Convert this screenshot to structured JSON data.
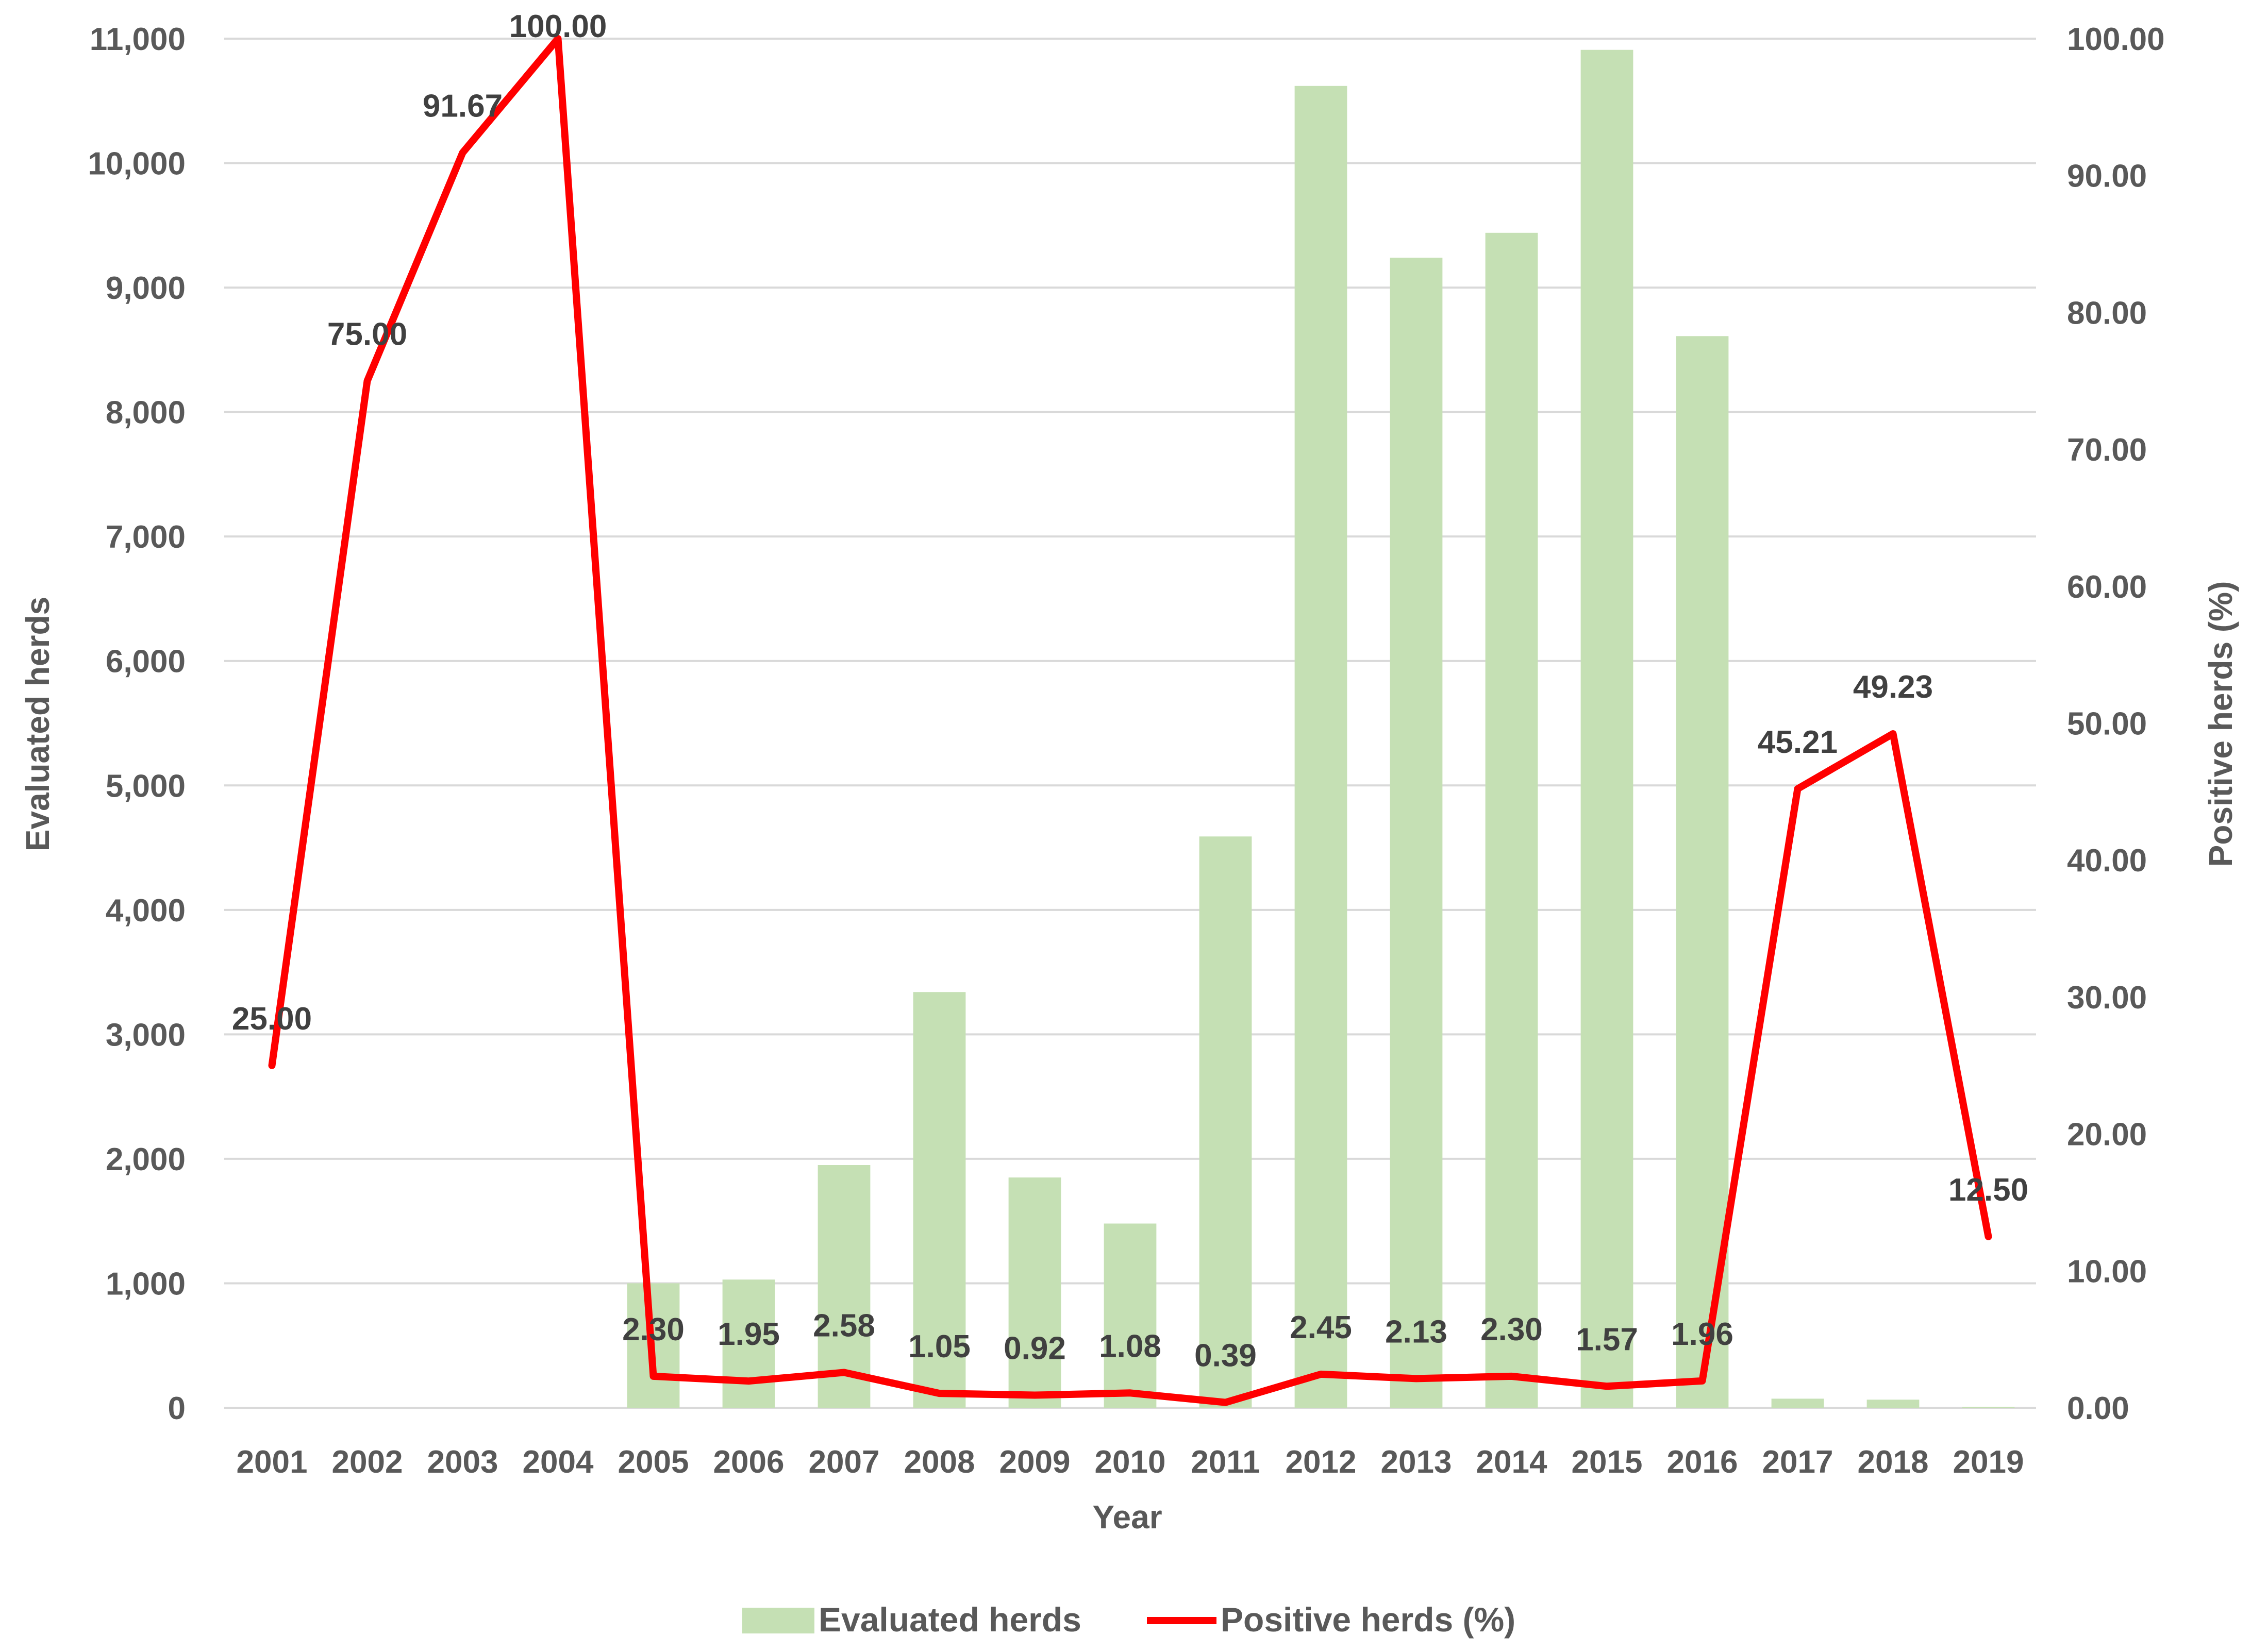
{
  "chart_data": {
    "type": "bar+line",
    "title": "",
    "xlabel": "Year",
    "ylabel_left": "Evaluated herds",
    "ylabel_right": "Positive herds (%)",
    "categories": [
      "2001",
      "2002",
      "2003",
      "2004",
      "2005",
      "2006",
      "2007",
      "2008",
      "2009",
      "2010",
      "2011",
      "2012",
      "2013",
      "2014",
      "2015",
      "2016",
      "2017",
      "2018",
      "2019"
    ],
    "series": [
      {
        "name": "Evaluated herds",
        "kind": "bar",
        "axis": "left",
        "color": "#c5e0b4",
        "values": [
          0,
          0,
          0,
          0,
          1000,
          1030,
          1950,
          3340,
          1850,
          1480,
          4590,
          10620,
          9240,
          9440,
          10910,
          8610,
          73,
          65,
          8
        ]
      },
      {
        "name": "Positive herds (%)",
        "kind": "line",
        "axis": "right",
        "color": "#ff0000",
        "values": [
          25.0,
          75.0,
          91.67,
          100.0,
          2.3,
          1.95,
          2.58,
          1.05,
          0.92,
          1.08,
          0.39,
          2.45,
          2.13,
          2.3,
          1.57,
          1.96,
          45.21,
          49.23,
          12.5
        ],
        "labels": [
          "25.00",
          "75.00",
          "91.67",
          "100.00",
          "2.30",
          "1.95",
          "2.58",
          "1.05",
          "0.92",
          "1.08",
          "0.39",
          "2.45",
          "2.13",
          "2.30",
          "1.57",
          "1.96",
          "45.21",
          "49.23",
          "12.50"
        ]
      }
    ],
    "ylim_left": [
      0,
      11000
    ],
    "yticks_left": [
      "0",
      "1,000",
      "2,000",
      "3,000",
      "4,000",
      "5,000",
      "6,000",
      "7,000",
      "8,000",
      "9,000",
      "10,000",
      "11,000"
    ],
    "ylim_right": [
      0,
      100
    ],
    "yticks_right": [
      "0.00",
      "10.00",
      "20.00",
      "30.00",
      "40.00",
      "50.00",
      "60.00",
      "70.00",
      "80.00",
      "90.00",
      "100.00"
    ],
    "grid": true,
    "legend_position": "bottom-center"
  }
}
